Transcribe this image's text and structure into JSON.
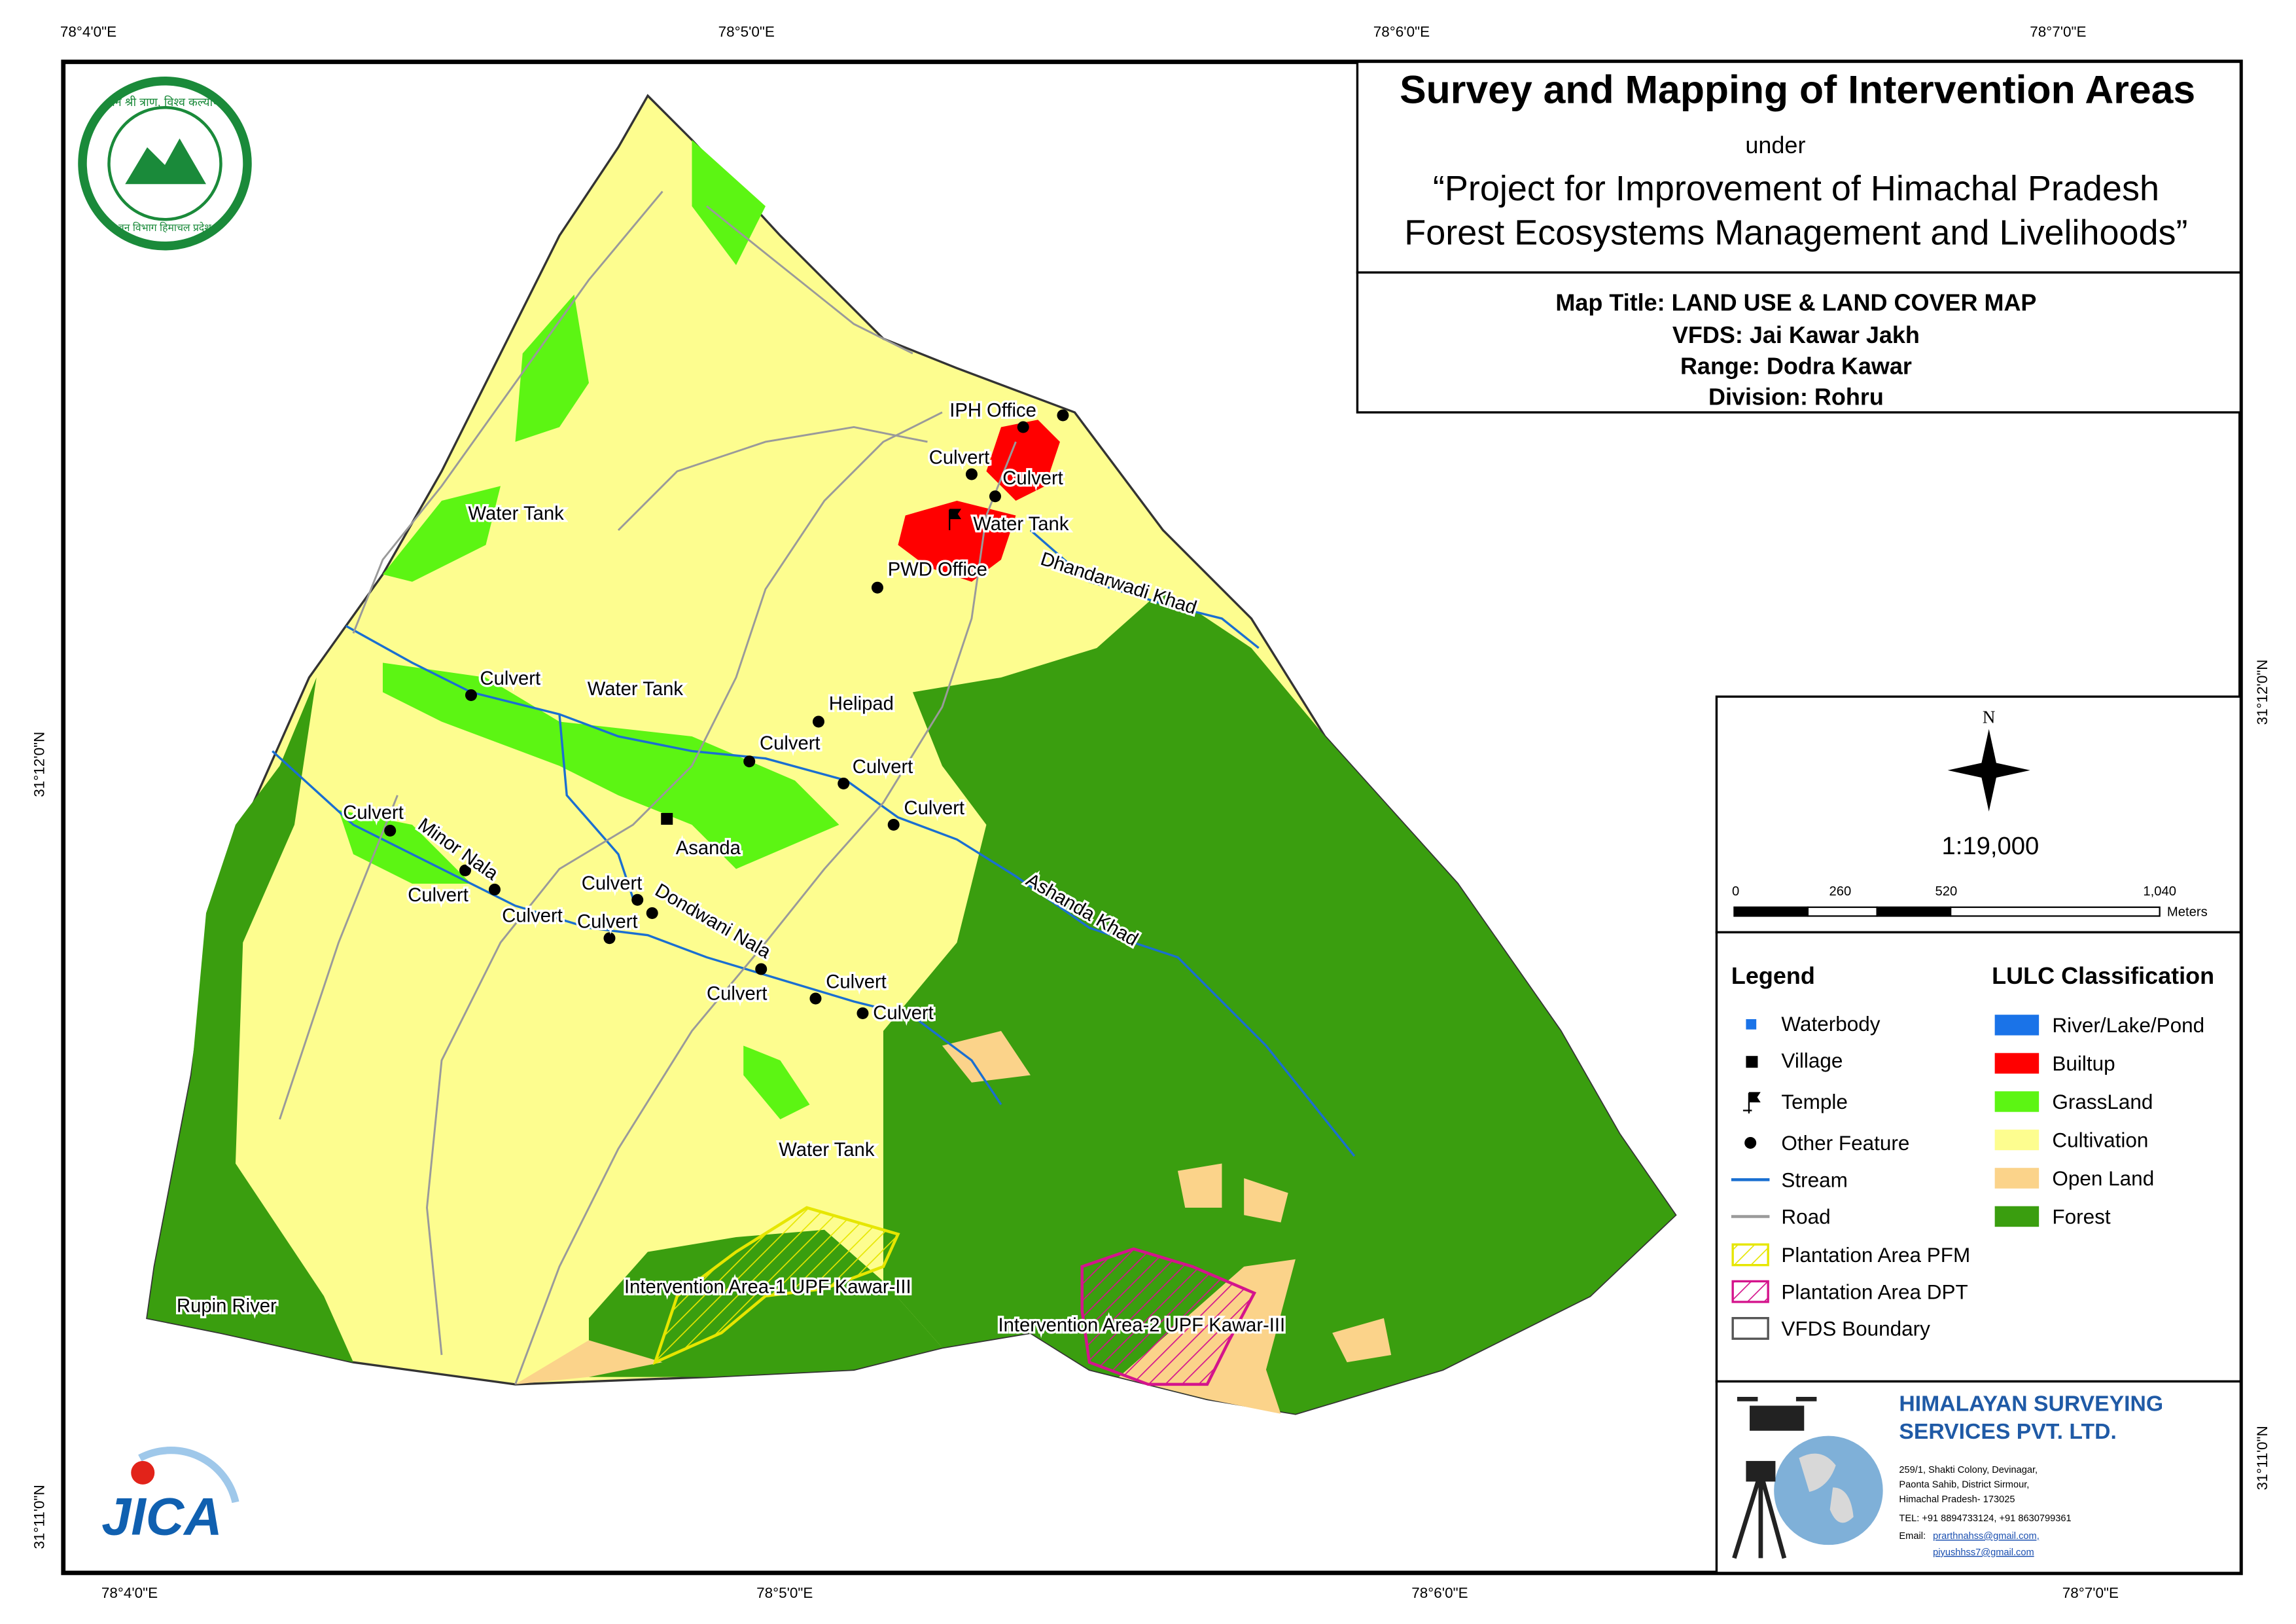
{
  "header": {
    "title": "Survey and Mapping of Intervention Areas",
    "under": "under",
    "project_line1": "“Project for Improvement of Himachal Pradesh",
    "project_line2": "Forest Ecosystems Management and Livelihoods”"
  },
  "map_info": {
    "map_title": "Map Title: LAND USE & LAND COVER MAP",
    "vfds": "VFDS: Jai Kawar Jakh",
    "range": "Range: Dodra Kawar",
    "division": "Division: Rohru"
  },
  "graticule": {
    "top": [
      "78°4'0\"E",
      "78°5'0\"E",
      "78°6'0\"E",
      "78°7'0\"E"
    ],
    "bottom": [
      "78°4'0\"E",
      "78°5'0\"E",
      "78°6'0\"E",
      "78°7'0\"E"
    ],
    "left": [
      "31°12'0\"N",
      "31°11'0\"N"
    ],
    "right": [
      "31°12'0\"N",
      "31°11'0\"N"
    ]
  },
  "north": "N",
  "scale": "1:19,000",
  "scale_bar": {
    "ticks": [
      "0",
      "260",
      "520",
      "1,040"
    ],
    "unit": "Meters"
  },
  "legend": {
    "title": "Legend",
    "items": [
      "Waterbody",
      "Village",
      "Temple",
      "Other Feature",
      "Stream",
      "Road",
      "Plantation Area PFM",
      "Plantation Area DPT",
      "VFDS Boundary"
    ]
  },
  "lulc": {
    "title": "LULC Classification",
    "items": [
      "River/Lake/Pond",
      "Builtup",
      "GrassLand",
      "Cultivation",
      "Open Land",
      "Forest"
    ]
  },
  "map_labels": [
    "IPH Office",
    "Culvert",
    "Culvert",
    "Water Tank",
    "PWD Office",
    "Dhandarwadi Khad",
    "Water Tank",
    "Culvert",
    "Water Tank",
    "Helipad",
    "Culvert",
    "Culvert",
    "Culvert",
    "Asanda",
    "Culvert",
    "Minor Nala",
    "Culvert",
    "Culvert",
    "Culvert",
    "Culvert",
    "Dondwani Nala",
    "Culvert",
    "Culvert",
    "Culvert",
    "Ashanda Khad",
    "Water Tank",
    "Rupin River",
    "Intervention Area-1 UPF Kawar-III",
    "Intervention Area-2 UPF Kawar-III"
  ],
  "logos": {
    "forest_top": "वन श्री त्राण, विश्व कल्याण",
    "forest_bottom": "वन विभाग हिमाचल प्रदेश",
    "jica": "JICA"
  },
  "company": {
    "name_line1": "HIMALAYAN SURVEYING",
    "name_line2": "SERVICES PVT. LTD.",
    "address": [
      "259/1, Shakti Colony, Devinagar,",
      "Paonta Sahib, District Sirmour,",
      "Himachal Pradesh- 173025",
      "TEL: +91 8894733124, +91 8630799361"
    ],
    "email_label": "Email:",
    "emails": [
      "prarthnahss@gmail.com,",
      "piyushhss7@gmail.com"
    ]
  }
}
